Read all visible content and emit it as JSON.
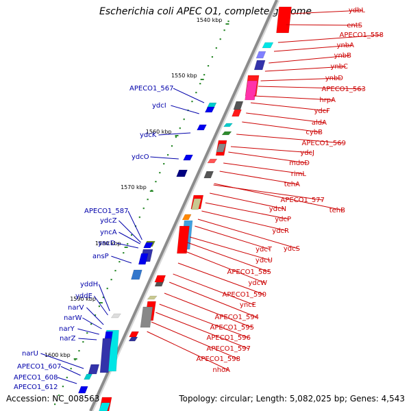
{
  "title": "Escherichia coli APEC O1, complete genome",
  "footer": {
    "accession_label": "Accession:",
    "accession": "NC_008563",
    "topology_label": "Topology:",
    "topology": "circular",
    "length_label": "Length:",
    "length": "5,082,025 bp",
    "genes_label": "Genes:",
    "genes": "4,543"
  },
  "colors": {
    "forward_label": "#cc0000",
    "reverse_label": "#0000aa",
    "backbone": "#8c8c8c",
    "tick": "#2e8b2e"
  },
  "ticks": [
    "1540 kbp",
    "1550 kbp",
    "1560 kbp",
    "1570 kbp",
    "1580 kbp",
    "1590 kbp",
    "1600 kbp"
  ],
  "forward_genes": [
    "ydbL",
    "entS",
    "APECO1_558",
    "ynbA",
    "ynbB",
    "ynbC",
    "ynbD",
    "APECO1_563",
    "hrpA",
    "ydcF",
    "aldA",
    "cybB",
    "APECO1_569",
    "ydcJ",
    "mdoD",
    "rimL",
    "tehA",
    "APECO1_577",
    "tehB",
    "ydcN",
    "ydcP",
    "ydcR",
    "ydcS",
    "ydcT",
    "ydcU",
    "APECO1_585",
    "ydcW",
    "APECO1_590",
    "yncE",
    "APECO1_594",
    "APECO1_595",
    "APECO1_596",
    "APECO1_597",
    "APECO1_598",
    "nhoA"
  ],
  "reverse_genes": [
    "APECO1_567",
    "ydcI",
    "ydcK",
    "ydcO",
    "APECO1_587",
    "ydcZ",
    "yncA",
    "yncD",
    "ansP",
    "yddH",
    "yddE",
    "narV",
    "narW",
    "narY",
    "narZ",
    "narU",
    "APECO1_607",
    "APECO1_608",
    "APECO1_612"
  ]
}
